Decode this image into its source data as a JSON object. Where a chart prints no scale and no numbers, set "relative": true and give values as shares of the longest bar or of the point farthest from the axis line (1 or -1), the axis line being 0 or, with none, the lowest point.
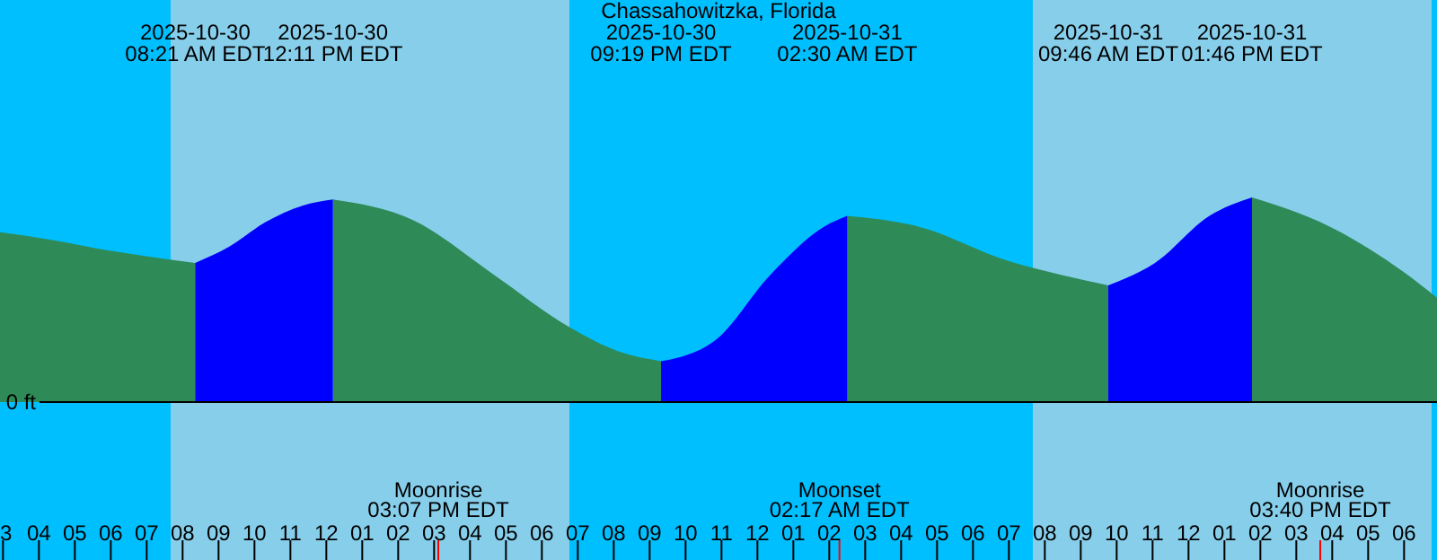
{
  "chart_data": {
    "type": "area",
    "title": "Chassahowitzka, Florida",
    "relative": true,
    "xlim": [
      "2025-10-30T02:55",
      "2025-10-31T18:55"
    ],
    "xticks": [
      {
        "value": "2025-10-30T03:00",
        "label": "3"
      },
      {
        "value": "2025-10-30T04:00",
        "label": "04"
      },
      {
        "value": "2025-10-30T05:00",
        "label": "05"
      },
      {
        "value": "2025-10-30T06:00",
        "label": "06"
      },
      {
        "value": "2025-10-30T07:00",
        "label": "07"
      },
      {
        "value": "2025-10-30T08:00",
        "label": "08"
      },
      {
        "value": "2025-10-30T09:00",
        "label": "09"
      },
      {
        "value": "2025-10-30T10:00",
        "label": "10"
      },
      {
        "value": "2025-10-30T11:00",
        "label": "11"
      },
      {
        "value": "2025-10-30T12:00",
        "label": "12"
      },
      {
        "value": "2025-10-30T13:00",
        "label": "01"
      },
      {
        "value": "2025-10-30T14:00",
        "label": "02"
      },
      {
        "value": "2025-10-30T15:00",
        "label": "03"
      },
      {
        "value": "2025-10-30T16:00",
        "label": "04"
      },
      {
        "value": "2025-10-30T17:00",
        "label": "05"
      },
      {
        "value": "2025-10-30T18:00",
        "label": "06"
      },
      {
        "value": "2025-10-30T19:00",
        "label": "07"
      },
      {
        "value": "2025-10-30T20:00",
        "label": "08"
      },
      {
        "value": "2025-10-30T21:00",
        "label": "09"
      },
      {
        "value": "2025-10-30T22:00",
        "label": "10"
      },
      {
        "value": "2025-10-30T23:00",
        "label": "11"
      },
      {
        "value": "2025-10-31T00:00",
        "label": "12"
      },
      {
        "value": "2025-10-31T01:00",
        "label": "01"
      },
      {
        "value": "2025-10-31T02:00",
        "label": "02"
      },
      {
        "value": "2025-10-31T03:00",
        "label": "03"
      },
      {
        "value": "2025-10-31T04:00",
        "label": "04"
      },
      {
        "value": "2025-10-31T05:00",
        "label": "05"
      },
      {
        "value": "2025-10-31T06:00",
        "label": "06"
      },
      {
        "value": "2025-10-31T07:00",
        "label": "07"
      },
      {
        "value": "2025-10-31T08:00",
        "label": "08"
      },
      {
        "value": "2025-10-31T09:00",
        "label": "09"
      },
      {
        "value": "2025-10-31T10:00",
        "label": "10"
      },
      {
        "value": "2025-10-31T11:00",
        "label": "11"
      },
      {
        "value": "2025-10-31T12:00",
        "label": "12"
      },
      {
        "value": "2025-10-31T13:00",
        "label": "01"
      },
      {
        "value": "2025-10-31T14:00",
        "label": "02"
      },
      {
        "value": "2025-10-31T15:00",
        "label": "03"
      },
      {
        "value": "2025-10-31T16:00",
        "label": "04"
      },
      {
        "value": "2025-10-31T17:00",
        "label": "05"
      },
      {
        "value": "2025-10-31T18:00",
        "label": "06"
      }
    ],
    "x": [
      "2025-10-30T02:55",
      "2025-10-30T04:27",
      "2025-10-30T05:58",
      "2025-10-30T07:30",
      "2025-10-30T08:21",
      "2025-10-30T09:18",
      "2025-10-30T10:19",
      "2025-10-30T11:20",
      "2025-10-30T12:11",
      "2025-10-30T14:24",
      "2025-10-30T16:41",
      "2025-10-30T18:44",
      "2025-10-30T20:16",
      "2025-10-30T21:19",
      "2025-10-30T22:49",
      "2025-10-31T00:21",
      "2025-10-31T01:53",
      "2025-10-31T02:30",
      "2025-10-31T04:26",
      "2025-10-31T06:59",
      "2025-10-31T08:30",
      "2025-10-31T09:46",
      "2025-10-31T11:04",
      "2025-10-31T12:35",
      "2025-10-31T13:46",
      "2025-10-31T15:54",
      "2025-10-31T17:57",
      "2025-10-31T18:55"
    ],
    "series": [
      {
        "color": "#2e8b57",
        "values": [
          0.83,
          0.79,
          0.74,
          0.7,
          0.68,
          null,
          null,
          null,
          0.99,
          0.89,
          0.62,
          0.37,
          0.24,
          0.2,
          null,
          null,
          null,
          0.91,
          0.86,
          0.69,
          0.62,
          0.57,
          null,
          null,
          1.0,
          0.86,
          0.64,
          0.51
        ]
      },
      {
        "color": "#0000ff",
        "values": [
          null,
          null,
          null,
          null,
          0.68,
          0.76,
          0.88,
          0.96,
          0.99,
          null,
          null,
          null,
          null,
          0.2,
          0.3,
          0.62,
          0.86,
          0.91,
          null,
          null,
          null,
          0.57,
          0.68,
          0.91,
          1.0,
          null,
          null,
          null
        ]
      }
    ],
    "bands": [
      {
        "axis": "x",
        "from": "2025-10-30T02:55",
        "to": "2025-10-30T07:40",
        "color": "#00bfff"
      },
      {
        "axis": "x",
        "from": "2025-10-30T07:40",
        "to": "2025-10-30T18:46",
        "color": "#87ceeb"
      },
      {
        "axis": "x",
        "from": "2025-10-30T18:46",
        "to": "2025-10-31T07:40",
        "color": "#00bfff"
      },
      {
        "axis": "x",
        "from": "2025-10-31T07:40",
        "to": "2025-10-31T18:46",
        "color": "#87ceeb"
      },
      {
        "axis": "x",
        "from": "2025-10-31T18:46",
        "to": "2025-10-31T18:55",
        "color": "#00bfff"
      }
    ],
    "ref_lines": [
      {
        "axis": "y",
        "value": 0,
        "label": "0 ft",
        "color": "#000000"
      },
      {
        "axis": "x",
        "value": "2025-10-30T15:07",
        "label": "Moonrise\n03:07 PM EDT",
        "color": "#ff0000"
      },
      {
        "axis": "x",
        "value": "2025-10-31T02:17",
        "label": "Moonset\n02:17 AM EDT",
        "color": "#ff0000"
      },
      {
        "axis": "x",
        "value": "2025-10-31T15:40",
        "label": "Moonrise\n03:40 PM EDT",
        "color": "#ff0000"
      }
    ],
    "annotations": [
      "2025-10-30\n08:21 AM EDT",
      "2025-10-30\n12:11 PM EDT",
      "2025-10-30\n09:19 PM EDT",
      "2025-10-31\n02:30 AM EDT",
      "2025-10-31\n09:46 AM EDT",
      "2025-10-31\n01:46 PM EDT"
    ]
  }
}
